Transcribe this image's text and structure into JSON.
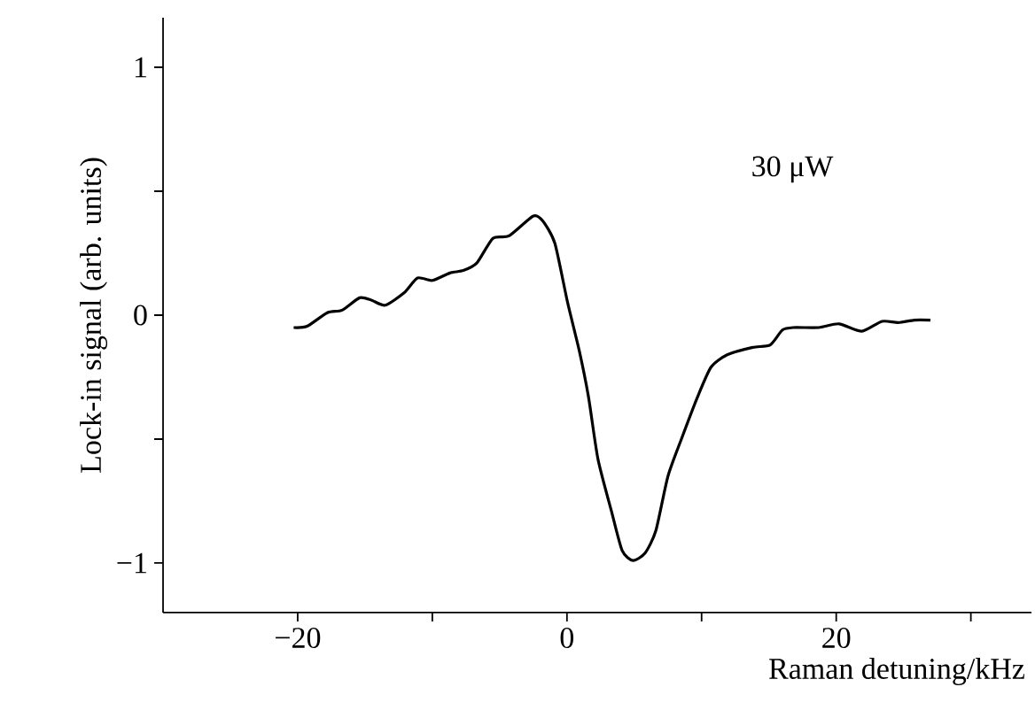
{
  "chart_data": {
    "type": "line",
    "xlabel": "Raman detuning/kHz",
    "ylabel": "Lock-in signal (arb. units)",
    "annotations": [
      "30 μW"
    ],
    "xlim": [
      -30,
      34.5
    ],
    "ylim": [
      -1.2,
      1.2
    ],
    "xticks": [
      {
        "value": -20,
        "label": "−20"
      },
      {
        "value": -10,
        "label": null
      },
      0,
      {
        "value": 10,
        "label": null
      },
      20,
      {
        "value": 30,
        "label": null
      }
    ],
    "yticks": [
      {
        "value": -1,
        "label": "−1"
      },
      {
        "value": -0.5,
        "label": null
      },
      0,
      {
        "value": 0.5,
        "label": null
      },
      1
    ],
    "grid": false,
    "marker": "none",
    "line_style": "solid",
    "series": [
      {
        "color": "#000000",
        "x": [
          -20.3,
          -19.3,
          -17.8,
          -16.7,
          -15.4,
          -14.5,
          -13.5,
          -12.1,
          -11.1,
          -10.0,
          -8.7,
          -7.7,
          -6.7,
          -5.5,
          -4.3,
          -2.5,
          -1.8,
          -0.9,
          0.05,
          0.9,
          1.6,
          2.3,
          3.3,
          4.1,
          4.9,
          5.8,
          6.6,
          7.5,
          8.5,
          9.7,
          10.7,
          11.9,
          13.8,
          15.1,
          16.0,
          16.8,
          18.7,
          20.2,
          21.9,
          23.4,
          24.6,
          25.8,
          27.0
        ],
        "values": [
          -0.05,
          -0.045,
          0.01,
          0.02,
          0.07,
          0.06,
          0.04,
          0.09,
          0.15,
          0.14,
          0.17,
          0.18,
          0.21,
          0.31,
          0.32,
          0.4,
          0.38,
          0.29,
          0.05,
          -0.14,
          -0.33,
          -0.58,
          -0.79,
          -0.95,
          -0.99,
          -0.96,
          -0.87,
          -0.65,
          -0.5,
          -0.33,
          -0.21,
          -0.16,
          -0.13,
          -0.12,
          -0.06,
          -0.05,
          -0.05,
          -0.035,
          -0.065,
          -0.025,
          -0.03,
          -0.02,
          -0.02
        ]
      }
    ]
  }
}
